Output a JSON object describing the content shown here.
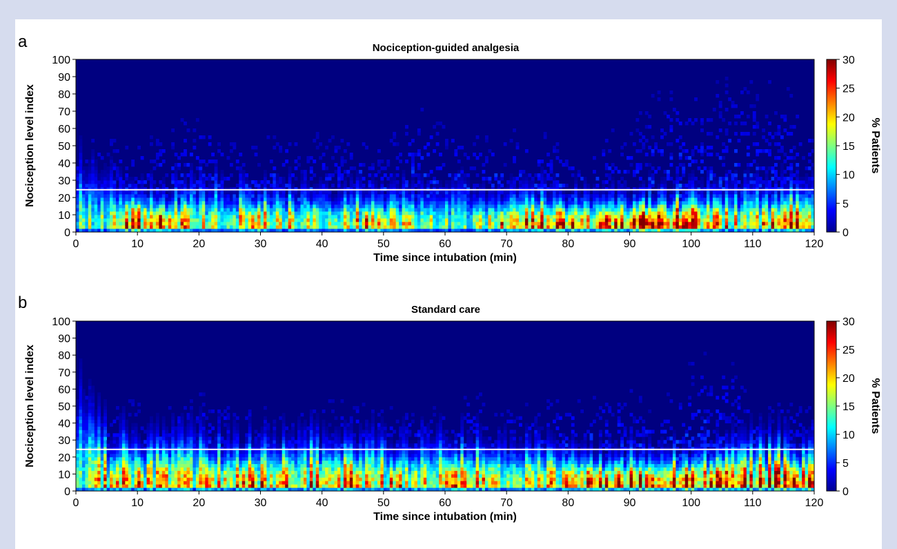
{
  "chart_data": [
    {
      "panel_label": "a",
      "type": "heatmap",
      "title": "Nociception-guided analgesia",
      "xlabel": "Time since intubation (min)",
      "ylabel": "Nociception level index",
      "x_range": [
        0,
        120
      ],
      "y_range": [
        0,
        100
      ],
      "x_ticks": [
        0,
        10,
        20,
        30,
        40,
        50,
        60,
        70,
        80,
        90,
        100,
        110,
        120
      ],
      "y_ticks": [
        0,
        10,
        20,
        30,
        40,
        50,
        60,
        70,
        80,
        90,
        100
      ],
      "reference_line_y": 24.5,
      "colorbar": {
        "label": "% Patients",
        "range": [
          0,
          30
        ],
        "ticks": [
          0,
          5,
          10,
          15,
          20,
          25,
          30
        ],
        "colormap": "jet"
      },
      "density_profile": {
        "x": [
          0,
          5,
          10,
          15,
          20,
          25,
          30,
          35,
          40,
          45,
          50,
          55,
          60,
          65,
          70,
          75,
          80,
          85,
          90,
          95,
          100,
          105,
          110,
          115,
          120
        ],
        "peak_percent": [
          14,
          16,
          26,
          24,
          18,
          17,
          22,
          18,
          20,
          19,
          22,
          18,
          15,
          16,
          26,
          22,
          24,
          24,
          25,
          27,
          26,
          20,
          18,
          24,
          23
        ],
        "spread_index": [
          30,
          18,
          13,
          14,
          17,
          16,
          13,
          14,
          14,
          15,
          13,
          14,
          15,
          15,
          13,
          14,
          12,
          12,
          12,
          13,
          13,
          16,
          16,
          15,
          15
        ],
        "max_index": [
          60,
          55,
          50,
          62,
          72,
          60,
          55,
          62,
          60,
          55,
          55,
          75,
          65,
          60,
          60,
          62,
          55,
          55,
          65,
          85,
          80,
          90,
          90,
          88,
          60
        ]
      }
    },
    {
      "panel_label": "b",
      "type": "heatmap",
      "title": "Standard care",
      "xlabel": "Time since intubation (min)",
      "ylabel": "Nociception level index",
      "x_range": [
        0,
        120
      ],
      "y_range": [
        0,
        100
      ],
      "x_ticks": [
        0,
        10,
        20,
        30,
        40,
        50,
        60,
        70,
        80,
        90,
        100,
        110,
        120
      ],
      "y_ticks": [
        0,
        10,
        20,
        30,
        40,
        50,
        60,
        70,
        80,
        90,
        100
      ],
      "reference_line_y": 24.5,
      "colorbar": {
        "label": "% Patients",
        "range": [
          0,
          30
        ],
        "ticks": [
          0,
          5,
          10,
          15,
          20,
          25,
          30
        ],
        "colormap": "jet"
      },
      "density_profile": {
        "x": [
          0,
          5,
          10,
          15,
          20,
          25,
          30,
          35,
          40,
          45,
          50,
          55,
          60,
          65,
          70,
          75,
          80,
          85,
          90,
          95,
          100,
          105,
          110,
          115,
          120
        ],
        "peak_percent": [
          14,
          20,
          20,
          19,
          18,
          20,
          22,
          21,
          20,
          22,
          20,
          19,
          20,
          21,
          19,
          20,
          22,
          26,
          25,
          26,
          27,
          24,
          25,
          26,
          24
        ],
        "spread_index": [
          35,
          20,
          18,
          18,
          19,
          18,
          17,
          18,
          18,
          17,
          18,
          18,
          17,
          17,
          16,
          16,
          15,
          13,
          13,
          13,
          13,
          15,
          17,
          17,
          16
        ],
        "max_index": [
          75,
          55,
          55,
          50,
          60,
          55,
          50,
          50,
          55,
          55,
          50,
          50,
          50,
          60,
          50,
          55,
          60,
          55,
          65,
          50,
          80,
          85,
          60,
          55,
          50
        ]
      }
    }
  ]
}
